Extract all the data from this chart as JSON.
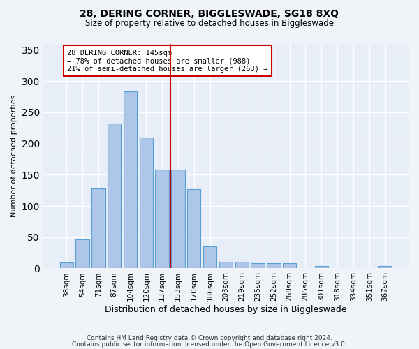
{
  "title": "28, DERING CORNER, BIGGLESWADE, SG18 8XQ",
  "subtitle": "Size of property relative to detached houses in Biggleswade",
  "xlabel": "Distribution of detached houses by size in Biggleswade",
  "ylabel": "Number of detached properties",
  "categories": [
    "38sqm",
    "54sqm",
    "71sqm",
    "87sqm",
    "104sqm",
    "120sqm",
    "137sqm",
    "153sqm",
    "170sqm",
    "186sqm",
    "203sqm",
    "219sqm",
    "235sqm",
    "252sqm",
    "268sqm",
    "285sqm",
    "301sqm",
    "318sqm",
    "334sqm",
    "351sqm",
    "367sqm"
  ],
  "values": [
    10,
    46,
    128,
    232,
    283,
    210,
    158,
    158,
    127,
    35,
    11,
    11,
    8,
    8,
    8,
    0,
    4,
    0,
    0,
    0,
    4
  ],
  "bar_color": "#aec6e8",
  "bar_edge_color": "#5a9fd4",
  "bg_color": "#e8eef8",
  "fig_bg_color": "#f0f4f8",
  "grid_color": "#ffffff",
  "annotation_box_text": "28 DERING CORNER: 145sqm\n← 78% of detached houses are smaller (988)\n21% of semi-detached houses are larger (263) →",
  "annotation_box_edge_color": "#cc0000",
  "vline_color": "#cc0000",
  "vline_x": 6.5,
  "ylim": [
    0,
    360
  ],
  "yticks": [
    0,
    50,
    100,
    150,
    200,
    250,
    300,
    350
  ],
  "footer1": "Contains HM Land Registry data © Crown copyright and database right 2024.",
  "footer2": "Contains public sector information licensed under the Open Government Licence v3.0."
}
